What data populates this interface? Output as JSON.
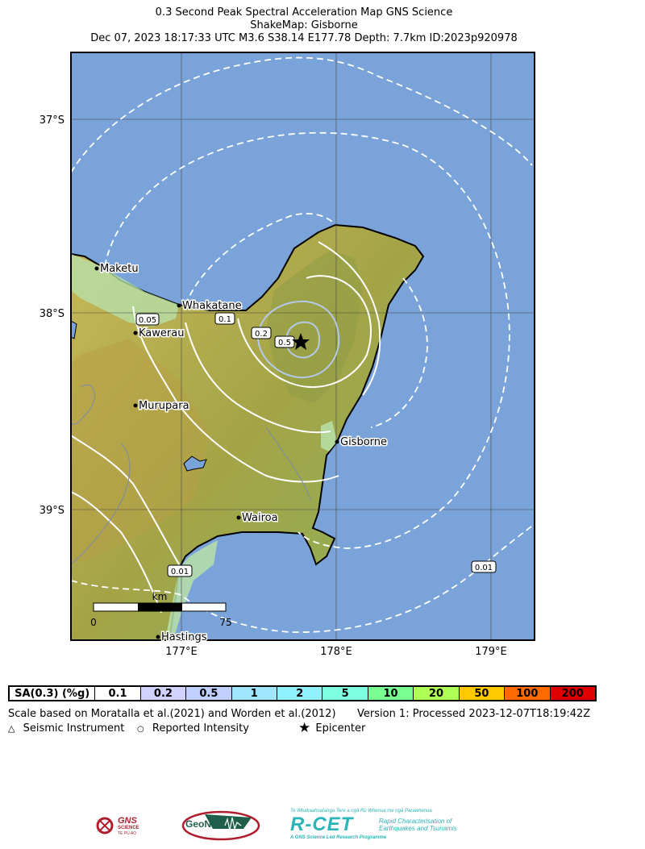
{
  "title": {
    "line1": "0.3 Second Peak Spectral Acceleration Map GNS Science",
    "line2": "ShakeMap: Gisborne",
    "line3": "Dec 07, 2023 18:17:33 UTC M3.6 S38.14 E177.78 Depth: 7.7km ID:2023p920978"
  },
  "map": {
    "lat_labels": [
      "37°S",
      "38°S",
      "39°S"
    ],
    "lon_labels": [
      "177°E",
      "178°E",
      "179°E"
    ],
    "cities": [
      {
        "name": "Maketu"
      },
      {
        "name": "Whakatane"
      },
      {
        "name": "Kawerau"
      },
      {
        "name": "Murupara"
      },
      {
        "name": "Gisborne"
      },
      {
        "name": "Wairoa"
      },
      {
        "name": "Hastings"
      }
    ],
    "contour_labels": [
      "0.05",
      "0.1",
      "0.2",
      "0.5",
      "0.01",
      "0.01"
    ],
    "scalebar": {
      "unit": "km",
      "start": "0",
      "end": "75"
    },
    "colors": {
      "ocean": "#7aa3d9",
      "land_low": "#b5dfa8",
      "land_mid": "#b9ab4c",
      "contour": "#ffffff",
      "inner_contour": "#b4c8e8"
    }
  },
  "legend": {
    "header": "SA(0.3) (%g)",
    "bins": [
      {
        "label": "0.1",
        "color": "#ffffff"
      },
      {
        "label": "0.2",
        "color": "#d2d2ff"
      },
      {
        "label": "0.5",
        "color": "#bfcfff"
      },
      {
        "label": "1",
        "color": "#a0e6ff"
      },
      {
        "label": "2",
        "color": "#90f2ff"
      },
      {
        "label": "5",
        "color": "#80ffe0"
      },
      {
        "label": "10",
        "color": "#7aff93"
      },
      {
        "label": "20",
        "color": "#b0ff55"
      },
      {
        "label": "50",
        "color": "#ffc800"
      },
      {
        "label": "100",
        "color": "#ff6a00"
      },
      {
        "label": "200",
        "color": "#e00000"
      }
    ]
  },
  "notes": {
    "scale_basis": "Scale based on Moratalla et al.(2021) and Worden et al.(2012)",
    "version": "Version 1: Processed 2023-12-07T18:19:42Z",
    "seismic_instrument": "Seismic Instrument",
    "reported_intensity": "Reported Intensity",
    "epicenter": "Epicenter"
  },
  "logos": {
    "gns": "GNS",
    "gns_sub": "SCIENCE",
    "gns_sub2": "TE PŪ AO",
    "geonet": "GeoNet",
    "rcet": "R-CET",
    "rcet_top": "Te Whakaahuatanga Tere a ngā Rū Whenua me ngā Parawhenua",
    "rcet_sub1": "Rapid Characterisation of",
    "rcet_sub2": "Earthquakes and Tsunamis",
    "rcet_bottom": "A GNS Science Led Research Programme"
  }
}
